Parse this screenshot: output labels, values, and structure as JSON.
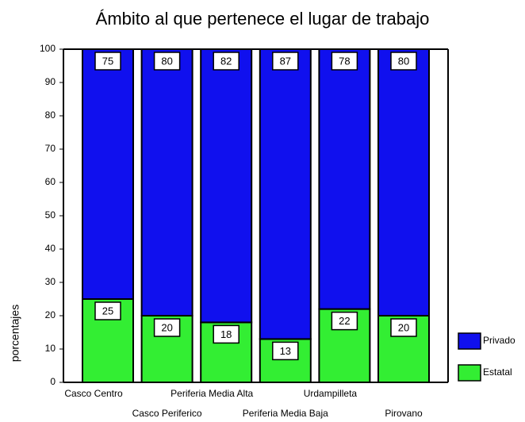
{
  "chart_data": {
    "type": "stacked_bar",
    "title": "Ámbito al que pertenece el lugar de trabajo",
    "y_label": "porcentajes",
    "categories": [
      "Casco Centro",
      "Casco Periferico",
      "Periferia Media Alta",
      "Periferia Media Baja",
      "Urdampilleta",
      "Pirovano"
    ],
    "series": [
      {
        "name": "Estatal",
        "color": "#33ee33",
        "values": [
          25,
          20,
          18,
          13,
          22,
          20
        ]
      },
      {
        "name": "Privado",
        "color": "#1010ee",
        "values": [
          75,
          80,
          82,
          87,
          78,
          80
        ]
      }
    ],
    "ylim": [
      0,
      100
    ],
    "yticks": [
      0,
      10,
      20,
      30,
      40,
      50,
      60,
      70,
      80,
      90,
      100
    ],
    "legend": "right"
  }
}
